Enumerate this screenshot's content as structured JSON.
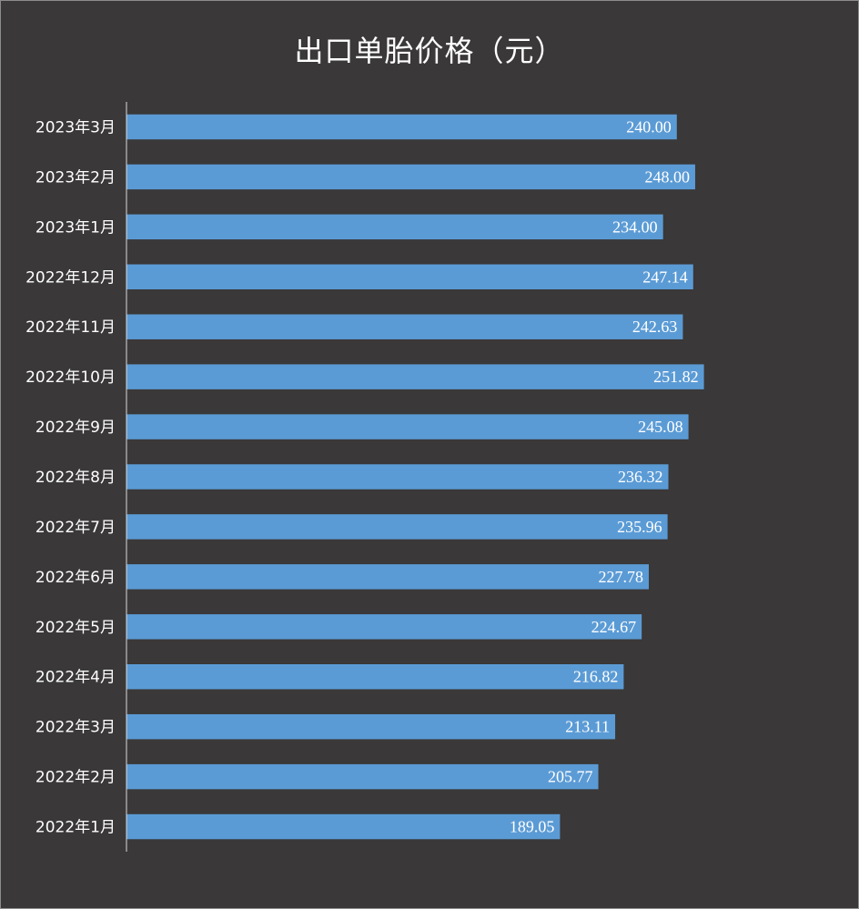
{
  "chart_data": {
    "type": "bar",
    "orientation": "horizontal",
    "title": "出口单胎价格（元）",
    "xlabel": "",
    "ylabel": "",
    "categories": [
      "2023年3月",
      "2023年2月",
      "2023年1月",
      "2022年12月",
      "2022年11月",
      "2022年10月",
      "2022年9月",
      "2022年8月",
      "2022年7月",
      "2022年6月",
      "2022年5月",
      "2022年4月",
      "2022年3月",
      "2022年2月",
      "2022年1月"
    ],
    "values": [
      240.0,
      248.0,
      234.0,
      247.14,
      242.63,
      251.82,
      245.08,
      236.32,
      235.96,
      227.78,
      224.67,
      216.82,
      213.11,
      205.77,
      189.05
    ],
    "value_labels": [
      "240.00",
      "248.00",
      "234.00",
      "247.14",
      "242.63",
      "251.82",
      "245.08",
      "236.32",
      "235.96",
      "227.78",
      "224.67",
      "216.82",
      "213.11",
      "205.77",
      "189.05"
    ],
    "xlim": [
      0,
      300
    ],
    "grid": false,
    "legend": "none",
    "colors": {
      "background": "#3a3838",
      "bar": "#5b9bd5",
      "text": "#ffffff",
      "axis": "#d9d9d9"
    }
  }
}
